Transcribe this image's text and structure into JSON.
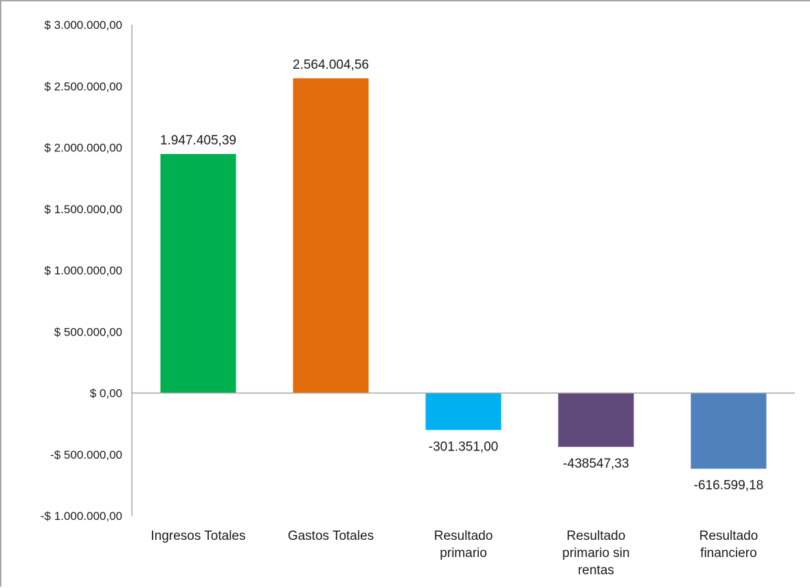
{
  "chart_data": {
    "type": "bar",
    "title": "",
    "xlabel": "",
    "ylabel": "",
    "categories": [
      "Ingresos Totales",
      "Gastos Totales",
      "Resultado primario",
      "Resultado primario sin rentas",
      "Resultado financiero"
    ],
    "category_lines": [
      [
        "Ingresos Totales"
      ],
      [
        "Gastos Totales"
      ],
      [
        "Resultado",
        "primario"
      ],
      [
        "Resultado",
        "primario sin",
        "rentas"
      ],
      [
        "Resultado",
        "financiero"
      ]
    ],
    "values": [
      1947405.39,
      2564004.56,
      -301351.0,
      -438547.33,
      -616599.18
    ],
    "data_labels": [
      "1.947.405,39",
      "2.564.004,56",
      "-301.351,00",
      "-438547,33",
      "-616.599,18"
    ],
    "colors": [
      "#00b050",
      "#e36c0a",
      "#00b0f0",
      "#604a7b",
      "#4f81bd"
    ],
    "ylim": [
      -1000000,
      3000000
    ],
    "y_ticks": [
      3000000,
      2500000,
      2000000,
      1500000,
      1000000,
      500000,
      0,
      -500000,
      -1000000
    ],
    "y_tick_labels": [
      "$ 3.000.000,00",
      "$ 2.500.000,00",
      "$ 2.000.000,00",
      "$ 1.500.000,00",
      "$ 1.000.000,00",
      "$ 500.000,00",
      "$ 0,00",
      "-$ 500.000,00",
      "-$ 1.000.000,00"
    ],
    "grid": false,
    "legend": "none",
    "axis_color": "#a6a6a6"
  }
}
